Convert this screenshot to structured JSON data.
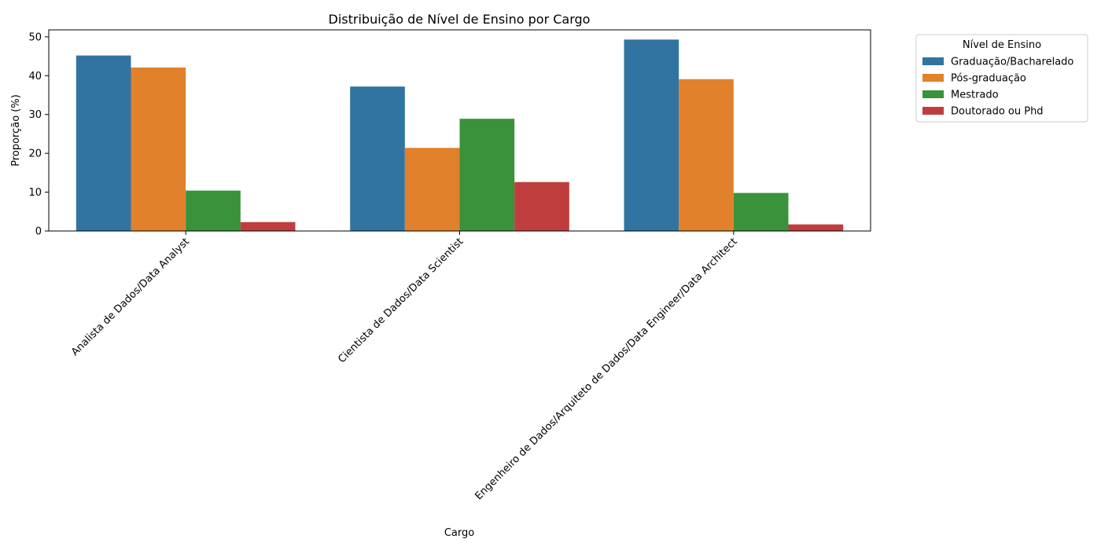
{
  "chart_data": {
    "type": "bar",
    "title": "Distribuição de Nível de Ensino por Cargo",
    "xlabel": "Cargo",
    "ylabel": "Proporção (%)",
    "ylim": [
      0,
      51.8
    ],
    "yticks": [
      0,
      10,
      20,
      30,
      40,
      50
    ],
    "grid": false,
    "legend_position": "outside-top-right",
    "legend_title": "Nível de Ensino",
    "categories": [
      "Analista de Dados/Data Analyst",
      "Cientista de Dados/Data Scientist",
      "Engenheiro de Dados/Arquiteto de Dados/Data Engineer/Data Architect"
    ],
    "series": [
      {
        "name": "Graduação/Bacharelado",
        "color": "#3274a1",
        "values": [
          45.2,
          37.2,
          49.3
        ]
      },
      {
        "name": "Pós-graduação",
        "color": "#e1812c",
        "values": [
          42.1,
          21.4,
          39.1
        ]
      },
      {
        "name": "Mestrado",
        "color": "#3a923a",
        "values": [
          10.4,
          28.9,
          9.8
        ]
      },
      {
        "name": "Doutorado ou Phd",
        "color": "#c03d3e",
        "values": [
          2.3,
          12.6,
          1.7
        ]
      }
    ]
  }
}
